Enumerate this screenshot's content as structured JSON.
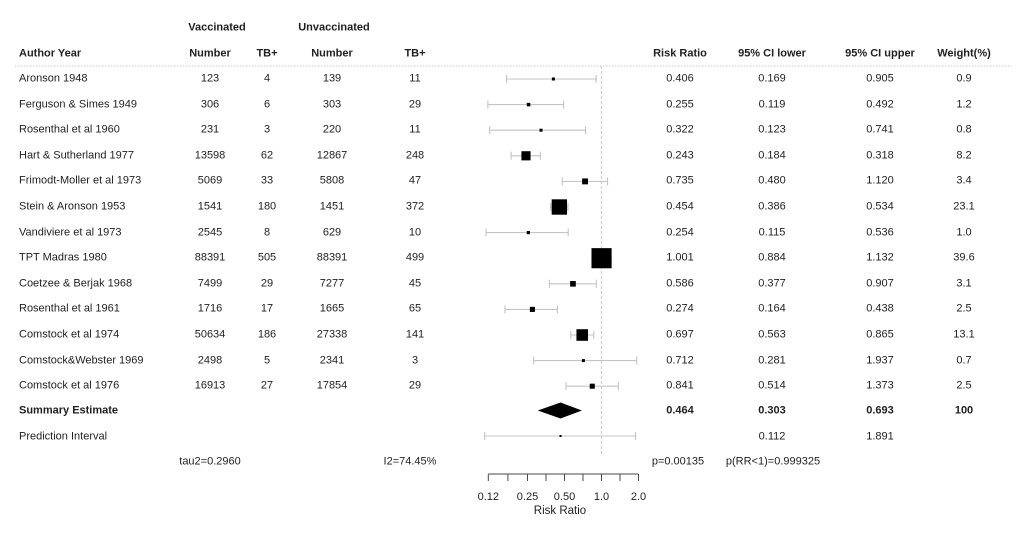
{
  "table": {
    "headers": {
      "author": "Author Year",
      "vaccinated_group": "Vaccinated",
      "unvaccinated_group": "Unvaccinated",
      "vacc_number": "Number",
      "vacc_tb": "TB+",
      "unvacc_number": "Number",
      "unvacc_tb": "TB+",
      "rr": "Risk Ratio",
      "ci_lower": "95% CI lower",
      "ci_upper": "95% CI upper",
      "weight": "Weight(%)"
    },
    "rows": [
      {
        "author": "Aronson 1948",
        "vacc_number": "123",
        "vacc_tb": "4",
        "unvacc_number": "139",
        "unvacc_tb": "11",
        "rr": "0.406",
        "ci_lower": "0.169",
        "ci_upper": "0.905",
        "weight": "0.9"
      },
      {
        "author": "Ferguson & Simes 1949",
        "vacc_number": "306",
        "vacc_tb": "6",
        "unvacc_number": "303",
        "unvacc_tb": "29",
        "rr": "0.255",
        "ci_lower": "0.119",
        "ci_upper": "0.492",
        "weight": "1.2"
      },
      {
        "author": "Rosenthal et al 1960",
        "vacc_number": "231",
        "vacc_tb": "3",
        "unvacc_number": "220",
        "unvacc_tb": "11",
        "rr": "0.322",
        "ci_lower": "0.123",
        "ci_upper": "0.741",
        "weight": "0.8"
      },
      {
        "author": "Hart & Sutherland 1977",
        "vacc_number": "13598",
        "vacc_tb": "62",
        "unvacc_number": "12867",
        "unvacc_tb": "248",
        "rr": "0.243",
        "ci_lower": "0.184",
        "ci_upper": "0.318",
        "weight": "8.2"
      },
      {
        "author": "Frimodt-Moller et al 1973",
        "vacc_number": "5069",
        "vacc_tb": "33",
        "unvacc_number": "5808",
        "unvacc_tb": "47",
        "rr": "0.735",
        "ci_lower": "0.480",
        "ci_upper": "1.120",
        "weight": "3.4"
      },
      {
        "author": "Stein & Aronson 1953",
        "vacc_number": "1541",
        "vacc_tb": "180",
        "unvacc_number": "1451",
        "unvacc_tb": "372",
        "rr": "0.454",
        "ci_lower": "0.386",
        "ci_upper": "0.534",
        "weight": "23.1"
      },
      {
        "author": "Vandiviere et al 1973",
        "vacc_number": "2545",
        "vacc_tb": "8",
        "unvacc_number": "629",
        "unvacc_tb": "10",
        "rr": "0.254",
        "ci_lower": "0.115",
        "ci_upper": "0.536",
        "weight": "1.0"
      },
      {
        "author": "TPT Madras 1980",
        "vacc_number": "88391",
        "vacc_tb": "505",
        "unvacc_number": "88391",
        "unvacc_tb": "499",
        "rr": "1.001",
        "ci_lower": "0.884",
        "ci_upper": "1.132",
        "weight": "39.6"
      },
      {
        "author": "Coetzee & Berjak 1968",
        "vacc_number": "7499",
        "vacc_tb": "29",
        "unvacc_number": "7277",
        "unvacc_tb": "45",
        "rr": "0.586",
        "ci_lower": "0.377",
        "ci_upper": "0.907",
        "weight": "3.1"
      },
      {
        "author": "Rosenthal et al 1961",
        "vacc_number": "1716",
        "vacc_tb": "17",
        "unvacc_number": "1665",
        "unvacc_tb": "65",
        "rr": "0.274",
        "ci_lower": "0.164",
        "ci_upper": "0.438",
        "weight": "2.5"
      },
      {
        "author": "Comstock et al 1974",
        "vacc_number": "50634",
        "vacc_tb": "186",
        "unvacc_number": "27338",
        "unvacc_tb": "141",
        "rr": "0.697",
        "ci_lower": "0.563",
        "ci_upper": "0.865",
        "weight": "13.1"
      },
      {
        "author": "Comstock&Webster 1969",
        "vacc_number": "2498",
        "vacc_tb": "5",
        "unvacc_number": "2341",
        "unvacc_tb": "3",
        "rr": "0.712",
        "ci_lower": "0.281",
        "ci_upper": "1.937",
        "weight": "0.7"
      },
      {
        "author": "Comstock et al 1976",
        "vacc_number": "16913",
        "vacc_tb": "27",
        "unvacc_number": "17854",
        "unvacc_tb": "29",
        "rr": "0.841",
        "ci_lower": "0.514",
        "ci_upper": "1.373",
        "weight": "2.5"
      }
    ],
    "summary_row": {
      "author": "Summary Estimate",
      "rr": "0.464",
      "ci_lower": "0.303",
      "ci_upper": "0.693",
      "weight": "100"
    },
    "prediction_row": {
      "author": "Prediction Interval",
      "ci_lower": "0.112",
      "ci_upper": "1.891"
    },
    "stats_row": {
      "tau2": "tau2=0.2960",
      "i2": "I2=74.45%",
      "p": "p=0.00135",
      "p_rr": "p(RR<1)=0.999325"
    }
  },
  "chart_data": {
    "type": "forest",
    "xlabel": "Risk Ratio",
    "x_scale": "log2",
    "xlim": [
      0.12,
      2.0
    ],
    "ref_line": 1.0,
    "axis_ticks": [
      0.12,
      0.1732,
      0.25,
      0.3536,
      0.5,
      0.7071,
      1.0,
      1.4142,
      2.0
    ],
    "axis_tick_labels": [
      "0.12",
      "",
      "0.25",
      "",
      "0.50",
      "",
      "1.0",
      "",
      "2.0"
    ],
    "studies": [
      {
        "name": "Aronson 1948",
        "rr": 0.406,
        "lower": 0.169,
        "upper": 0.905,
        "weight": 0.9
      },
      {
        "name": "Ferguson & Simes 1949",
        "rr": 0.255,
        "lower": 0.119,
        "upper": 0.492,
        "weight": 1.2
      },
      {
        "name": "Rosenthal et al 1960",
        "rr": 0.322,
        "lower": 0.123,
        "upper": 0.741,
        "weight": 0.8
      },
      {
        "name": "Hart & Sutherland 1977",
        "rr": 0.243,
        "lower": 0.184,
        "upper": 0.318,
        "weight": 8.2
      },
      {
        "name": "Frimodt-Moller et al 1973",
        "rr": 0.735,
        "lower": 0.48,
        "upper": 1.12,
        "weight": 3.4
      },
      {
        "name": "Stein & Aronson 1953",
        "rr": 0.454,
        "lower": 0.386,
        "upper": 0.534,
        "weight": 23.1
      },
      {
        "name": "Vandiviere et al 1973",
        "rr": 0.254,
        "lower": 0.115,
        "upper": 0.536,
        "weight": 1.0
      },
      {
        "name": "TPT Madras 1980",
        "rr": 1.001,
        "lower": 0.884,
        "upper": 1.132,
        "weight": 39.6
      },
      {
        "name": "Coetzee & Berjak 1968",
        "rr": 0.586,
        "lower": 0.377,
        "upper": 0.907,
        "weight": 3.1
      },
      {
        "name": "Rosenthal et al 1961",
        "rr": 0.274,
        "lower": 0.164,
        "upper": 0.438,
        "weight": 2.5
      },
      {
        "name": "Comstock et al 1974",
        "rr": 0.697,
        "lower": 0.563,
        "upper": 0.865,
        "weight": 13.1
      },
      {
        "name": "Comstock&Webster 1969",
        "rr": 0.712,
        "lower": 0.281,
        "upper": 1.937,
        "weight": 0.7
      },
      {
        "name": "Comstock et al 1976",
        "rr": 0.841,
        "lower": 0.514,
        "upper": 1.373,
        "weight": 2.5
      }
    ],
    "summary": {
      "rr": 0.464,
      "lower": 0.303,
      "upper": 0.693
    },
    "prediction": {
      "center": 0.464,
      "lower": 0.112,
      "upper": 1.891
    },
    "heterogeneity": {
      "tau2": 0.296,
      "i2_percent": 74.45,
      "p": 0.00135,
      "p_rr_lt_1": 0.999325
    },
    "colors": {
      "marker": "#000000",
      "ci_line": "#c4c4c4",
      "ref_line": "#d2d2d2",
      "axis": "#4a4a4a",
      "text": "#1f1f1f",
      "rule": "#c9c9c9"
    }
  }
}
